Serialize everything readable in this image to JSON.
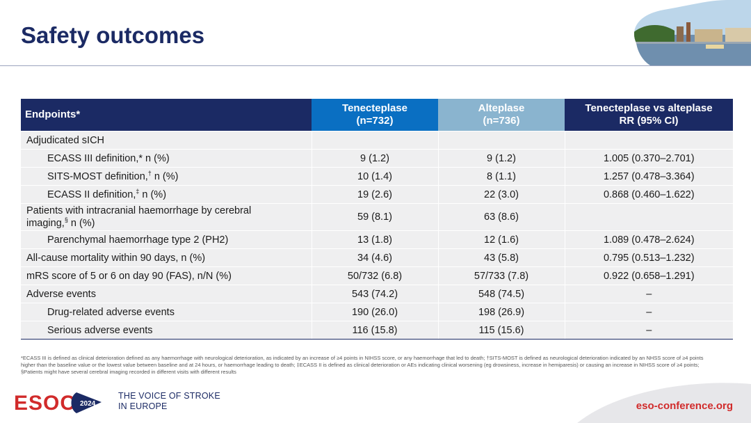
{
  "page": {
    "title": "Safety outcomes"
  },
  "table": {
    "headers": {
      "endpoints": "Endpoints*",
      "tenecteplase": [
        "Tenecteplase",
        "(n=732)"
      ],
      "alteplase": [
        "Alteplase",
        "(n=736)"
      ],
      "comparison": [
        "Tenecteplase vs alteplase",
        "RR (95% CI)"
      ]
    },
    "rows": [
      {
        "label": "Adjudicated sICH",
        "tnk": "",
        "alt": "",
        "rr": ""
      },
      {
        "label": "ECASS III definition,* n (%)",
        "tnk": "9 (1.2)",
        "alt": "9 (1.2)",
        "rr": "1.005 (0.370–2.701)"
      },
      {
        "label_main": "SITS-MOST definition,",
        "label_mark": "†",
        "label_end": " n (%)",
        "tnk": "10 (1.4)",
        "alt": "8 (1.1)",
        "rr": "1.257 (0.478–3.364)"
      },
      {
        "label_main": "ECASS II definition,",
        "label_mark": "‡",
        "label_end": " n (%)",
        "tnk": "19 (2.6)",
        "alt": "22 (3.0)",
        "rr": "0.868 (0.460–1.622)"
      },
      {
        "label_line1": "Patients with intracranial haemorrhage by cerebral",
        "label_line2_main": "imaging,",
        "label_mark": "§",
        "label_end": " n (%)",
        "tnk": "59 (8.1)",
        "alt": "63 (8.6)",
        "rr": ""
      },
      {
        "label": "Parenchymal haemorrhage type 2 (PH2)",
        "tnk": "13 (1.8)",
        "alt": "12 (1.6)",
        "rr": "1.089 (0.478–2.624)"
      },
      {
        "label": "All-cause mortality within 90 days, n (%)",
        "tnk": "34 (4.6)",
        "alt": "43 (5.8)",
        "rr": "0.795 (0.513–1.232)"
      },
      {
        "label": "mRS score of 5 or 6 on day 90 (FAS), n/N (%)",
        "tnk": "50/732 (6.8)",
        "alt": "57/733 (7.8)",
        "rr": "0.922 (0.658–1.291)"
      },
      {
        "label": "Adverse events",
        "tnk": "543 (74.2)",
        "alt": "548 (74.5)",
        "rr": "–"
      },
      {
        "label": "Drug-related adverse events",
        "tnk": "190 (26.0)",
        "alt": "198 (26.9)",
        "rr": "–"
      },
      {
        "label": "Serious adverse events",
        "tnk": "116 (15.8)",
        "alt": "115 (15.6)",
        "rr": "–"
      }
    ]
  },
  "footnote": "*ECASS III is defined as clinical deterioration defined as any haemorrhage with neurological deterioration, as indicated by an increase of ≥4 points in NIHSS score, or any haemorrhage that led to death; †SITS-MOST is defined as neurological deterioration indicated by an NHSS score of ≥4 points higher than the baseline value or the lowest value between baseline and at 24 hours, or haemorrhage leading to death; ‡ECASS II is defined as clinical deterioration or AEs indicating clinical worsening (eg drowsiness, increase in hemiparesis) or causing an increase in NIHSS score of ≥4 points; §Patients might have several cerebral imaging recorded in different visits with different results",
  "footer": {
    "logo_text": "ESOC",
    "logo_year": "2024",
    "tagline": [
      "THE VOICE OF STROKE",
      "IN EUROPE"
    ],
    "url": "eso-conference.org"
  },
  "colors": {
    "navy": "#1b2a64",
    "tenecteplase_header": "#0a6fc2",
    "alteplase_header": "#8ab4cf",
    "row_fill": "#efeff0",
    "brand_red": "#d12b2b"
  }
}
